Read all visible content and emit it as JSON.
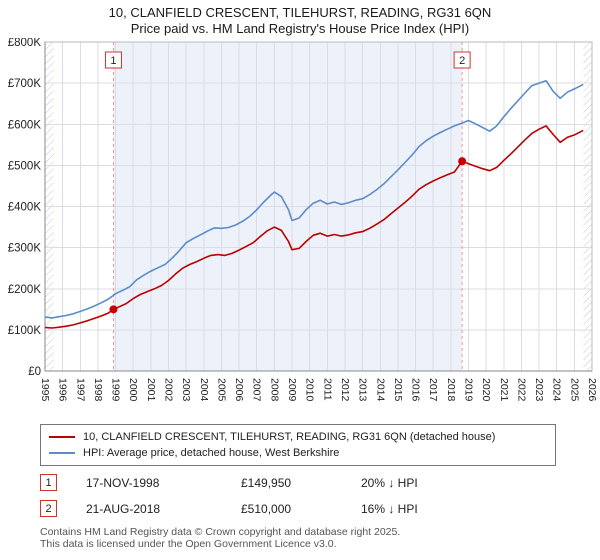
{
  "title": {
    "line1": "10, CLANFIELD CRESCENT, TILEHURST, READING, RG31 6QN",
    "line2": "Price paid vs. HM Land Registry's House Price Index (HPI)"
  },
  "chart_data": {
    "type": "line",
    "x_range": [
      1995,
      2026
    ],
    "y_range": [
      0,
      800000
    ],
    "grid": true,
    "colors": {
      "property_line": "#bb0000",
      "hpi_line": "#5b8cc8",
      "sale_marker": "#cc0000",
      "dashed_sale_line": "#e89898",
      "shaded_region_fill": "#edf2fa",
      "marker_box_border": "#cc3333"
    },
    "y_ticks": [
      {
        "value": 0,
        "label": "£0"
      },
      {
        "value": 100000,
        "label": "£100K"
      },
      {
        "value": 200000,
        "label": "£200K"
      },
      {
        "value": 300000,
        "label": "£300K"
      },
      {
        "value": 400000,
        "label": "£400K"
      },
      {
        "value": 500000,
        "label": "£500K"
      },
      {
        "value": 600000,
        "label": "£600K"
      },
      {
        "value": 700000,
        "label": "£700K"
      },
      {
        "value": 800000,
        "label": "£800K"
      }
    ],
    "x_ticks": [
      1995,
      1996,
      1997,
      1998,
      1999,
      2000,
      2001,
      2002,
      2003,
      2004,
      2005,
      2006,
      2007,
      2008,
      2009,
      2010,
      2011,
      2012,
      2013,
      2014,
      2015,
      2016,
      2017,
      2018,
      2019,
      2020,
      2021,
      2022,
      2023,
      2024,
      2025,
      2026
    ],
    "shaded_region": {
      "from": 1998.88,
      "to": 2018.64
    },
    "markers": [
      {
        "label": "1",
        "x": 1998.88,
        "y": 149950
      },
      {
        "label": "2",
        "x": 2018.64,
        "y": 510000
      }
    ],
    "series": [
      {
        "name": "10, CLANFIELD CRESCENT, TILEHURST, READING, RG31 6QN (detached house)",
        "color": "#bb0000",
        "points": [
          [
            1995.0,
            106000
          ],
          [
            1995.4,
            104500
          ],
          [
            1995.8,
            106500
          ],
          [
            1996.2,
            109000
          ],
          [
            1996.6,
            112000
          ],
          [
            1997.0,
            117000
          ],
          [
            1997.4,
            122000
          ],
          [
            1997.8,
            128000
          ],
          [
            1998.2,
            134000
          ],
          [
            1998.6,
            141000
          ],
          [
            1998.88,
            149950
          ],
          [
            1999.2,
            156000
          ],
          [
            1999.6,
            164000
          ],
          [
            2000.0,
            176000
          ],
          [
            2000.4,
            186000
          ],
          [
            2000.8,
            193000
          ],
          [
            2001.2,
            200000
          ],
          [
            2001.6,
            208000
          ],
          [
            2002.0,
            220000
          ],
          [
            2002.4,
            236000
          ],
          [
            2002.8,
            250000
          ],
          [
            2003.2,
            259000
          ],
          [
            2003.6,
            266000
          ],
          [
            2004.0,
            274000
          ],
          [
            2004.4,
            281000
          ],
          [
            2004.8,
            283000
          ],
          [
            2005.2,
            281000
          ],
          [
            2005.6,
            286000
          ],
          [
            2006.0,
            294000
          ],
          [
            2006.4,
            303000
          ],
          [
            2006.8,
            312000
          ],
          [
            2007.2,
            327000
          ],
          [
            2007.6,
            341000
          ],
          [
            2008.0,
            350000
          ],
          [
            2008.4,
            342000
          ],
          [
            2008.8,
            315000
          ],
          [
            2009.0,
            295000
          ],
          [
            2009.4,
            298000
          ],
          [
            2009.8,
            315000
          ],
          [
            2010.2,
            330000
          ],
          [
            2010.6,
            335000
          ],
          [
            2011.0,
            328000
          ],
          [
            2011.4,
            332000
          ],
          [
            2011.8,
            328000
          ],
          [
            2012.2,
            331000
          ],
          [
            2012.6,
            336000
          ],
          [
            2013.0,
            339000
          ],
          [
            2013.4,
            347000
          ],
          [
            2013.8,
            357000
          ],
          [
            2014.2,
            368000
          ],
          [
            2014.6,
            382000
          ],
          [
            2015.0,
            396000
          ],
          [
            2015.4,
            410000
          ],
          [
            2015.8,
            425000
          ],
          [
            2016.2,
            442000
          ],
          [
            2016.6,
            453000
          ],
          [
            2017.0,
            462000
          ],
          [
            2017.4,
            470000
          ],
          [
            2017.8,
            477000
          ],
          [
            2018.2,
            484000
          ],
          [
            2018.64,
            510000
          ],
          [
            2019.0,
            504000
          ],
          [
            2019.4,
            498000
          ],
          [
            2019.8,
            492000
          ],
          [
            2020.2,
            487000
          ],
          [
            2020.6,
            495000
          ],
          [
            2021.0,
            512000
          ],
          [
            2021.4,
            528000
          ],
          [
            2021.8,
            545000
          ],
          [
            2022.2,
            562000
          ],
          [
            2022.6,
            578000
          ],
          [
            2023.0,
            588000
          ],
          [
            2023.4,
            596000
          ],
          [
            2023.8,
            575000
          ],
          [
            2024.2,
            556000
          ],
          [
            2024.6,
            568000
          ],
          [
            2025.0,
            574000
          ],
          [
            2025.5,
            585000
          ]
        ]
      },
      {
        "name": "HPI: Average price, detached house, West Berkshire",
        "color": "#5b8cc8",
        "points": [
          [
            1995.0,
            131000
          ],
          [
            1995.4,
            129000
          ],
          [
            1995.8,
            132000
          ],
          [
            1996.2,
            135000
          ],
          [
            1996.6,
            139000
          ],
          [
            1997.0,
            145000
          ],
          [
            1997.4,
            151000
          ],
          [
            1997.8,
            158000
          ],
          [
            1998.2,
            166000
          ],
          [
            1998.6,
            175000
          ],
          [
            1999.0,
            188000
          ],
          [
            1999.4,
            196000
          ],
          [
            1999.8,
            205000
          ],
          [
            2000.2,
            222000
          ],
          [
            2000.6,
            233000
          ],
          [
            2001.0,
            243000
          ],
          [
            2001.4,
            251000
          ],
          [
            2001.8,
            259000
          ],
          [
            2002.2,
            274000
          ],
          [
            2002.6,
            292000
          ],
          [
            2003.0,
            312000
          ],
          [
            2003.4,
            322000
          ],
          [
            2003.8,
            331000
          ],
          [
            2004.2,
            340000
          ],
          [
            2004.6,
            348000
          ],
          [
            2005.0,
            347000
          ],
          [
            2005.4,
            349000
          ],
          [
            2005.8,
            355000
          ],
          [
            2006.2,
            364000
          ],
          [
            2006.6,
            376000
          ],
          [
            2007.0,
            392000
          ],
          [
            2007.4,
            411000
          ],
          [
            2007.8,
            428000
          ],
          [
            2008.0,
            435000
          ],
          [
            2008.4,
            424000
          ],
          [
            2008.8,
            392000
          ],
          [
            2009.0,
            366000
          ],
          [
            2009.4,
            372000
          ],
          [
            2009.8,
            392000
          ],
          [
            2010.2,
            408000
          ],
          [
            2010.6,
            415000
          ],
          [
            2011.0,
            406000
          ],
          [
            2011.4,
            411000
          ],
          [
            2011.8,
            405000
          ],
          [
            2012.2,
            409000
          ],
          [
            2012.6,
            415000
          ],
          [
            2013.0,
            419000
          ],
          [
            2013.4,
            429000
          ],
          [
            2013.8,
            441000
          ],
          [
            2014.2,
            455000
          ],
          [
            2014.6,
            472000
          ],
          [
            2015.0,
            489000
          ],
          [
            2015.4,
            507000
          ],
          [
            2015.8,
            525000
          ],
          [
            2016.2,
            546000
          ],
          [
            2016.6,
            560000
          ],
          [
            2017.0,
            571000
          ],
          [
            2017.4,
            580000
          ],
          [
            2017.8,
            588000
          ],
          [
            2018.2,
            596000
          ],
          [
            2018.6,
            602000
          ],
          [
            2019.0,
            609000
          ],
          [
            2019.4,
            601000
          ],
          [
            2019.8,
            592000
          ],
          [
            2020.2,
            583000
          ],
          [
            2020.6,
            596000
          ],
          [
            2021.0,
            618000
          ],
          [
            2021.4,
            638000
          ],
          [
            2021.8,
            657000
          ],
          [
            2022.2,
            676000
          ],
          [
            2022.6,
            694000
          ],
          [
            2023.0,
            700000
          ],
          [
            2023.4,
            706000
          ],
          [
            2023.8,
            680000
          ],
          [
            2024.2,
            663000
          ],
          [
            2024.6,
            678000
          ],
          [
            2025.0,
            686000
          ],
          [
            2025.5,
            697000
          ]
        ]
      }
    ]
  },
  "legend": {
    "items": [
      {
        "label": "10, CLANFIELD CRESCENT, TILEHURST, READING, RG31 6QN (detached house)"
      },
      {
        "label": "HPI: Average price, detached house, West Berkshire"
      }
    ]
  },
  "annotations": [
    {
      "num": "1",
      "date": "17-NOV-1998",
      "price": "£149,950",
      "delta": "20% ↓ HPI"
    },
    {
      "num": "2",
      "date": "21-AUG-2018",
      "price": "£510,000",
      "delta": "16% ↓ HPI"
    }
  ],
  "footer": {
    "line1": "Contains HM Land Registry data © Crown copyright and database right 2025.",
    "line2": "This data is licensed under the Open Government Licence v3.0."
  }
}
